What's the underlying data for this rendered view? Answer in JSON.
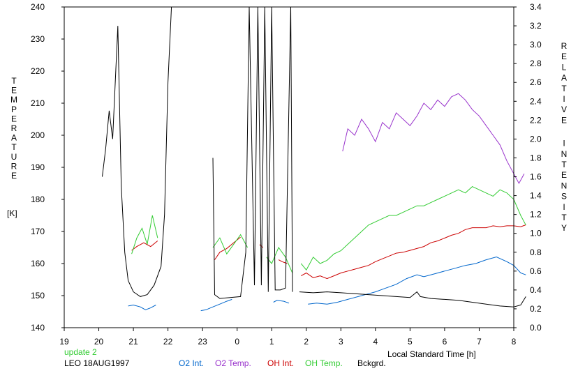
{
  "chart_data": {
    "type": "line",
    "left_axis": {
      "label": "TEMPERATURE",
      "unit": "[K]",
      "range": [
        140,
        240
      ],
      "ticks": [
        140,
        150,
        160,
        170,
        180,
        190,
        200,
        210,
        220,
        230,
        240
      ]
    },
    "right_axis": {
      "label": "RELATIVE INTENSITY",
      "range": [
        0.0,
        3.4
      ],
      "ticks": [
        "0.0",
        "0.2",
        "0.4",
        "0.6",
        "0.8",
        "1.0",
        "1.2",
        "1.4",
        "1.6",
        "1.8",
        "2.0",
        "2.2",
        "2.4",
        "2.6",
        "2.8",
        "3.0",
        "3.2",
        "3.4"
      ]
    },
    "x_axis": {
      "label": "Local Standard Time [h]",
      "range_hours": [
        19,
        32
      ],
      "tick_labels": [
        "19",
        "20",
        "21",
        "22",
        "23",
        "0",
        "1",
        "2",
        "3",
        "4",
        "5",
        "6",
        "7",
        "8"
      ]
    },
    "status_text": "update 2",
    "station_text": "LEO 18AUG1997",
    "series": [
      {
        "name": "O2 Int.",
        "color": "#0066cc",
        "axis": "right",
        "segments": [
          [
            [
              20.85,
              0.23
            ],
            [
              21.0,
              0.24
            ],
            [
              21.2,
              0.22
            ],
            [
              21.35,
              0.19
            ],
            [
              21.5,
              0.21
            ],
            [
              21.65,
              0.24
            ]
          ],
          [
            [
              22.95,
              0.18
            ],
            [
              23.1,
              0.19
            ],
            [
              23.3,
              0.22
            ],
            [
              23.5,
              0.25
            ],
            [
              23.7,
              0.28
            ],
            [
              23.85,
              0.3
            ]
          ],
          [
            [
              25.05,
              0.27
            ],
            [
              25.15,
              0.29
            ],
            [
              25.35,
              0.28
            ],
            [
              25.5,
              0.26
            ]
          ],
          [
            [
              26.05,
              0.25
            ],
            [
              26.3,
              0.26
            ],
            [
              26.6,
              0.25
            ],
            [
              26.9,
              0.27
            ],
            [
              27.2,
              0.3
            ],
            [
              27.5,
              0.33
            ],
            [
              27.8,
              0.36
            ],
            [
              28.0,
              0.38
            ],
            [
              28.3,
              0.42
            ],
            [
              28.6,
              0.46
            ],
            [
              28.9,
              0.52
            ],
            [
              29.2,
              0.56
            ],
            [
              29.4,
              0.54
            ],
            [
              29.7,
              0.57
            ],
            [
              30.0,
              0.6
            ],
            [
              30.3,
              0.63
            ],
            [
              30.6,
              0.66
            ],
            [
              30.9,
              0.68
            ],
            [
              31.2,
              0.72
            ],
            [
              31.5,
              0.75
            ],
            [
              31.8,
              0.7
            ],
            [
              32.0,
              0.66
            ],
            [
              32.2,
              0.58
            ],
            [
              32.35,
              0.56
            ]
          ]
        ]
      },
      {
        "name": "O2 Temp.",
        "color": "#9933cc",
        "axis": "left",
        "segments": [
          [
            [
              27.05,
              195
            ],
            [
              27.2,
              202
            ],
            [
              27.4,
              200
            ],
            [
              27.6,
              205
            ],
            [
              27.8,
              202
            ],
            [
              28.0,
              198
            ],
            [
              28.2,
              204
            ],
            [
              28.4,
              202
            ],
            [
              28.6,
              207
            ],
            [
              28.8,
              205
            ],
            [
              29.0,
              203
            ],
            [
              29.2,
              206
            ],
            [
              29.4,
              210
            ],
            [
              29.6,
              208
            ],
            [
              29.8,
              211
            ],
            [
              30.0,
              209
            ],
            [
              30.2,
              212
            ],
            [
              30.4,
              213
            ],
            [
              30.6,
              211
            ],
            [
              30.8,
              208
            ],
            [
              31.0,
              206
            ],
            [
              31.2,
              203
            ],
            [
              31.4,
              200
            ],
            [
              31.6,
              197
            ],
            [
              31.8,
              192
            ],
            [
              32.0,
              188
            ],
            [
              32.15,
              185
            ],
            [
              32.3,
              188
            ]
          ]
        ]
      },
      {
        "name": "OH Int.",
        "color": "#cc0000",
        "axis": "right",
        "segments": [
          [
            [
              20.95,
              0.82
            ],
            [
              21.1,
              0.86
            ],
            [
              21.3,
              0.9
            ],
            [
              21.5,
              0.86
            ],
            [
              21.7,
              0.92
            ]
          ],
          [
            [
              23.35,
              0.72
            ],
            [
              23.5,
              0.8
            ],
            [
              23.7,
              0.84
            ],
            [
              23.9,
              0.9
            ],
            [
              24.1,
              0.96
            ]
          ],
          [
            [
              24.65,
              0.88
            ],
            [
              24.75,
              0.85
            ]
          ],
          [
            [
              25.2,
              0.72
            ],
            [
              25.3,
              0.7
            ],
            [
              25.45,
              0.68
            ]
          ],
          [
            [
              25.85,
              0.55
            ],
            [
              26.0,
              0.58
            ],
            [
              26.2,
              0.53
            ],
            [
              26.4,
              0.55
            ],
            [
              26.6,
              0.52
            ],
            [
              26.8,
              0.55
            ],
            [
              27.0,
              0.58
            ],
            [
              27.2,
              0.6
            ],
            [
              27.4,
              0.62
            ],
            [
              27.6,
              0.64
            ],
            [
              27.8,
              0.66
            ],
            [
              28.0,
              0.7
            ],
            [
              28.2,
              0.73
            ],
            [
              28.4,
              0.76
            ],
            [
              28.6,
              0.79
            ],
            [
              28.8,
              0.8
            ],
            [
              29.0,
              0.82
            ],
            [
              29.2,
              0.84
            ],
            [
              29.4,
              0.86
            ],
            [
              29.6,
              0.9
            ],
            [
              29.8,
              0.92
            ],
            [
              30.0,
              0.95
            ],
            [
              30.2,
              0.98
            ],
            [
              30.4,
              1.0
            ],
            [
              30.6,
              1.04
            ],
            [
              30.8,
              1.06
            ],
            [
              31.0,
              1.06
            ],
            [
              31.2,
              1.06
            ],
            [
              31.4,
              1.08
            ],
            [
              31.6,
              1.07
            ],
            [
              31.8,
              1.08
            ],
            [
              32.0,
              1.08
            ],
            [
              32.2,
              1.07
            ],
            [
              32.35,
              1.09
            ]
          ]
        ]
      },
      {
        "name": "OH Temp.",
        "color": "#33cc33",
        "axis": "left",
        "segments": [
          [
            [
              20.95,
              163
            ],
            [
              21.1,
              168
            ],
            [
              21.25,
              171
            ],
            [
              21.4,
              166
            ],
            [
              21.55,
              175
            ],
            [
              21.7,
              168
            ]
          ],
          [
            [
              23.3,
              165
            ],
            [
              23.5,
              168
            ],
            [
              23.7,
              163
            ],
            [
              23.9,
              166
            ],
            [
              24.1,
              169
            ],
            [
              24.3,
              165
            ]
          ],
          [
            [
              24.85,
              162
            ],
            [
              25.0,
              160
            ],
            [
              25.2,
              165
            ],
            [
              25.4,
              162
            ],
            [
              25.6,
              157
            ]
          ],
          [
            [
              25.85,
              160
            ],
            [
              26.0,
              158
            ],
            [
              26.2,
              162
            ],
            [
              26.4,
              160
            ],
            [
              26.6,
              161
            ],
            [
              26.8,
              163
            ],
            [
              27.0,
              164
            ],
            [
              27.2,
              166
            ],
            [
              27.4,
              168
            ],
            [
              27.6,
              170
            ],
            [
              27.8,
              172
            ],
            [
              28.0,
              173
            ],
            [
              28.2,
              174
            ],
            [
              28.4,
              175
            ],
            [
              28.6,
              175
            ],
            [
              28.8,
              176
            ],
            [
              29.0,
              177
            ],
            [
              29.2,
              178
            ],
            [
              29.4,
              178
            ],
            [
              29.6,
              179
            ],
            [
              29.8,
              180
            ],
            [
              30.0,
              181
            ],
            [
              30.2,
              182
            ],
            [
              30.4,
              183
            ],
            [
              30.6,
              182
            ],
            [
              30.8,
              184
            ],
            [
              31.0,
              183
            ],
            [
              31.2,
              182
            ],
            [
              31.4,
              181
            ],
            [
              31.6,
              183
            ],
            [
              31.8,
              182
            ],
            [
              32.0,
              180
            ],
            [
              32.2,
              175
            ],
            [
              32.35,
              172
            ]
          ]
        ]
      },
      {
        "name": "Bckgrd.",
        "color": "#000000",
        "axis": "right",
        "segments": [
          [
            [
              20.1,
              1.6
            ],
            [
              20.2,
              1.9
            ],
            [
              20.3,
              2.3
            ],
            [
              20.4,
              2.0
            ],
            [
              20.55,
              3.2
            ],
            [
              20.65,
              1.5
            ],
            [
              20.75,
              0.8
            ],
            [
              20.85,
              0.5
            ],
            [
              21.0,
              0.38
            ],
            [
              21.2,
              0.33
            ],
            [
              21.4,
              0.35
            ],
            [
              21.6,
              0.45
            ],
            [
              21.8,
              0.65
            ],
            [
              21.9,
              1.2
            ],
            [
              22.0,
              2.6
            ],
            [
              22.1,
              3.4
            ]
          ],
          [
            [
              23.3,
              1.8
            ],
            [
              23.35,
              0.35
            ],
            [
              23.5,
              0.31
            ],
            [
              23.8,
              0.32
            ],
            [
              24.1,
              0.33
            ],
            [
              24.25,
              0.8
            ],
            [
              24.35,
              3.4
            ],
            [
              24.5,
              0.45
            ],
            [
              24.6,
              3.4
            ],
            [
              24.7,
              0.45
            ],
            [
              24.8,
              3.4
            ],
            [
              24.9,
              0.38
            ],
            [
              25.0,
              3.4
            ],
            [
              25.1,
              0.4
            ],
            [
              25.25,
              0.4
            ],
            [
              25.4,
              0.42
            ],
            [
              25.55,
              3.4
            ],
            [
              25.6,
              0.38
            ]
          ],
          [
            [
              25.8,
              0.38
            ],
            [
              26.2,
              0.37
            ],
            [
              26.6,
              0.38
            ],
            [
              27.0,
              0.37
            ],
            [
              27.4,
              0.36
            ],
            [
              27.8,
              0.35
            ],
            [
              28.2,
              0.34
            ],
            [
              28.6,
              0.33
            ],
            [
              29.0,
              0.32
            ],
            [
              29.2,
              0.38
            ],
            [
              29.3,
              0.33
            ],
            [
              29.6,
              0.31
            ],
            [
              30.0,
              0.3
            ],
            [
              30.4,
              0.29
            ],
            [
              30.8,
              0.27
            ],
            [
              31.2,
              0.25
            ],
            [
              31.6,
              0.23
            ],
            [
              32.0,
              0.22
            ],
            [
              32.2,
              0.24
            ],
            [
              32.35,
              0.33
            ]
          ]
        ]
      }
    ]
  }
}
